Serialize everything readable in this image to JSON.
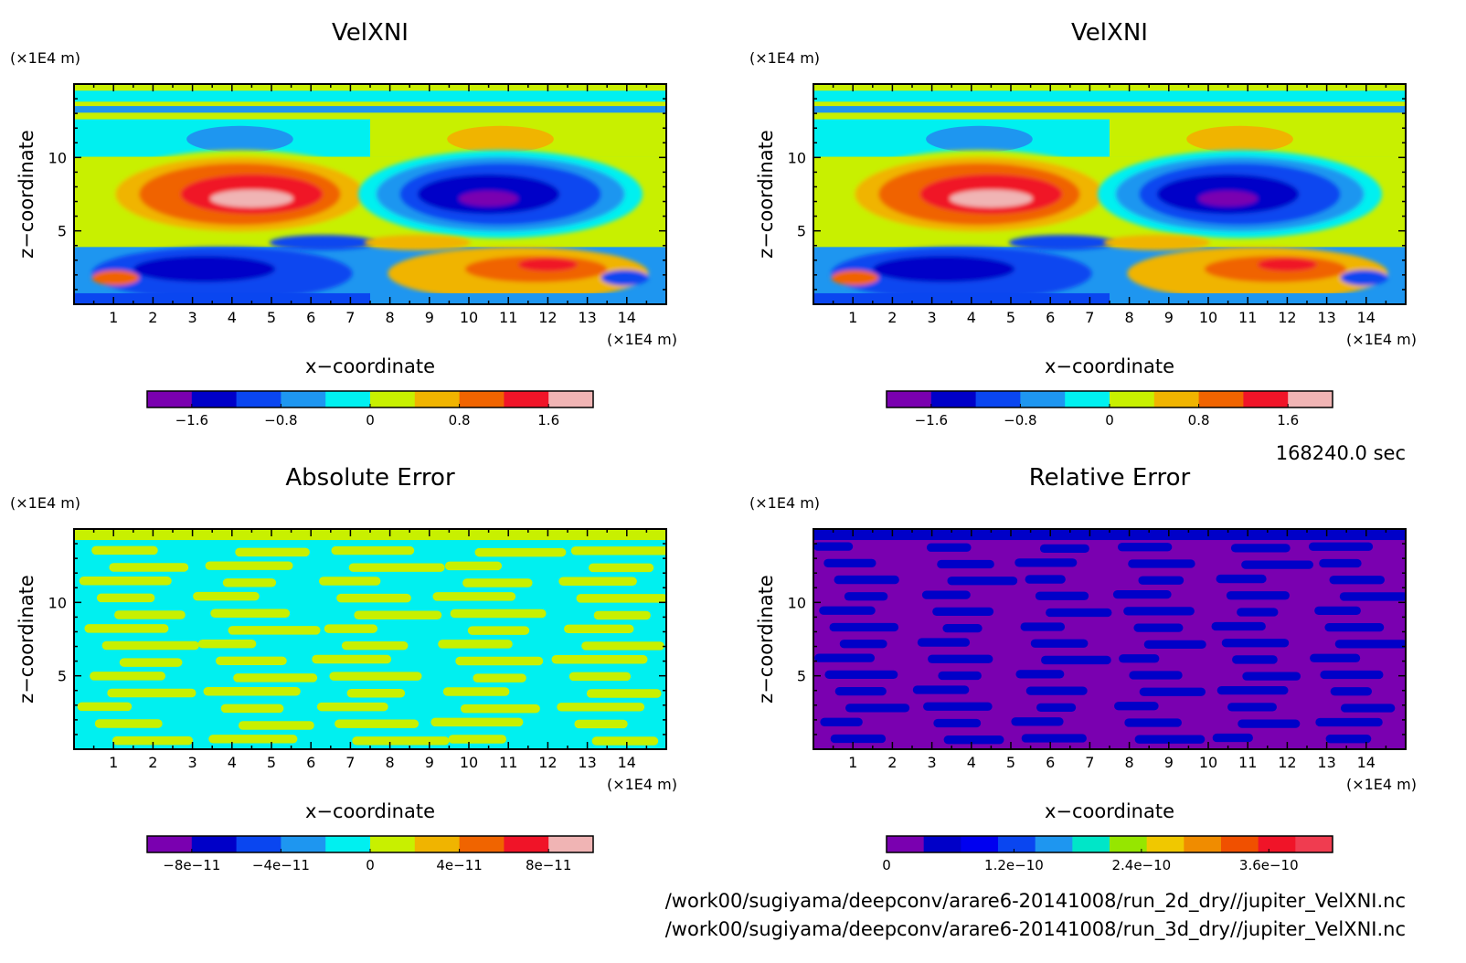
{
  "time_label": "168240.0 sec",
  "file_paths": [
    "/work00/sugiyama/deepconv/arare6-20141008/run_2d_dry//jupiter_VelXNI.nc",
    "/work00/sugiyama/deepconv/arare6-20141008/run_3d_dry//jupiter_VelXNI.nc"
  ],
  "chart_data": [
    {
      "type": "heatmap",
      "title": "VelXNI",
      "xlabel": "x−coordinate",
      "ylabel": "z−coordinate",
      "x_unit": "(×1E4 m)",
      "y_unit": "(×1E4 m)",
      "xlim": [
        0,
        15
      ],
      "ylim": [
        0,
        15
      ],
      "xticks": [
        1,
        2,
        3,
        4,
        5,
        6,
        7,
        8,
        9,
        10,
        11,
        12,
        13,
        14
      ],
      "yticks": [
        5,
        10
      ],
      "colorbar": {
        "colors": [
          "#7a00b0",
          "#0000c8",
          "#0a46f0",
          "#1e96f0",
          "#00f0f0",
          "#c8f000",
          "#f0b400",
          "#f06400",
          "#f01428",
          "#f0b4b4"
        ],
        "tick_values": [
          -1.6,
          -0.8,
          0,
          0.8,
          1.6
        ],
        "tick_labels": [
          "−1.6",
          "−0.8",
          "0",
          "0.8",
          "1.6"
        ],
        "range": [
          -2.0,
          2.0
        ]
      }
    },
    {
      "type": "heatmap",
      "title": "VelXNI",
      "xlabel": "x−coordinate",
      "ylabel": "z−coordinate",
      "x_unit": "(×1E4 m)",
      "y_unit": "(×1E4 m)",
      "xlim": [
        0,
        15
      ],
      "ylim": [
        0,
        15
      ],
      "xticks": [
        1,
        2,
        3,
        4,
        5,
        6,
        7,
        8,
        9,
        10,
        11,
        12,
        13,
        14
      ],
      "yticks": [
        5,
        10
      ],
      "colorbar": {
        "colors": [
          "#7a00b0",
          "#0000c8",
          "#0a46f0",
          "#1e96f0",
          "#00f0f0",
          "#c8f000",
          "#f0b400",
          "#f06400",
          "#f01428",
          "#f0b4b4"
        ],
        "tick_values": [
          -1.6,
          -0.8,
          0,
          0.8,
          1.6
        ],
        "tick_labels": [
          "−1.6",
          "−0.8",
          "0",
          "0.8",
          "1.6"
        ],
        "range": [
          -2.0,
          2.0
        ]
      }
    },
    {
      "type": "heatmap",
      "title": "Absolute Error",
      "xlabel": "x−coordinate",
      "ylabel": "z−coordinate",
      "x_unit": "(×1E4 m)",
      "y_unit": "(×1E4 m)",
      "xlim": [
        0,
        15
      ],
      "ylim": [
        0,
        15
      ],
      "xticks": [
        1,
        2,
        3,
        4,
        5,
        6,
        7,
        8,
        9,
        10,
        11,
        12,
        13,
        14
      ],
      "yticks": [
        5,
        10
      ],
      "colorbar": {
        "colors": [
          "#7a00b0",
          "#0000c8",
          "#0a46f0",
          "#1e96f0",
          "#00f0f0",
          "#c8f000",
          "#f0b400",
          "#f06400",
          "#f01428",
          "#f0b4b4"
        ],
        "tick_values": [
          -8e-11,
          -4e-11,
          0,
          4e-11,
          8e-11
        ],
        "tick_labels": [
          "−8e−11",
          "−4e−11",
          "0",
          "4e−11",
          "8e−11"
        ],
        "range": [
          -1e-10,
          1e-10
        ]
      }
    },
    {
      "type": "heatmap",
      "title": "Relative Error",
      "xlabel": "x−coordinate",
      "ylabel": "z−coordinate",
      "x_unit": "(×1E4 m)",
      "y_unit": "(×1E4 m)",
      "xlim": [
        0,
        15
      ],
      "ylim": [
        0,
        15
      ],
      "xticks": [
        1,
        2,
        3,
        4,
        5,
        6,
        7,
        8,
        9,
        10,
        11,
        12,
        13,
        14
      ],
      "yticks": [
        5,
        10
      ],
      "colorbar": {
        "colors": [
          "#7a00b0",
          "#0000c8",
          "#0000f0",
          "#0a46f0",
          "#1e96f0",
          "#00e6c8",
          "#96e600",
          "#f0c800",
          "#f08c00",
          "#f05000",
          "#f01428",
          "#f03c50"
        ],
        "tick_values": [
          0,
          1.2e-10,
          2.4e-10,
          3.6e-10
        ],
        "tick_labels": [
          "0",
          "1.2e−10",
          "2.4e−10",
          "3.6e−10"
        ],
        "range": [
          0,
          4.2e-10
        ]
      }
    }
  ]
}
